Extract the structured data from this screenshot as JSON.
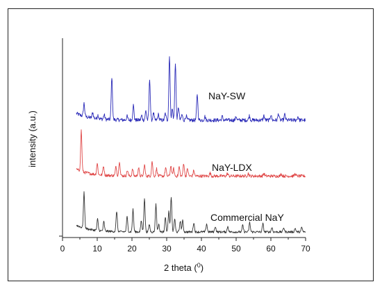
{
  "chart_data": {
    "type": "line",
    "xlabel": "2 theta (",
    "xlabel_degree": "0",
    "xlabel_close": ")",
    "ylabel": "intensity (a.u.)",
    "xlim": [
      0,
      70
    ],
    "xticks": [
      0,
      10,
      20,
      30,
      40,
      50,
      60,
      70
    ],
    "grid": false,
    "series": [
      {
        "name": "NaY-SW",
        "color": "#2b2bb8",
        "baseline": 3.0,
        "noise": 0.05,
        "x_range": [
          4,
          70
        ],
        "peaks": [
          [
            6.2,
            0.35
          ],
          [
            8.7,
            0.15
          ],
          [
            10.2,
            0.1
          ],
          [
            12.0,
            0.12
          ],
          [
            14.2,
            1.15
          ],
          [
            18.6,
            0.1
          ],
          [
            20.4,
            0.4
          ],
          [
            22.8,
            0.12
          ],
          [
            24.0,
            0.25
          ],
          [
            25.1,
            1.1
          ],
          [
            26.2,
            0.18
          ],
          [
            27.6,
            0.15
          ],
          [
            29.6,
            0.18
          ],
          [
            30.8,
            1.75
          ],
          [
            31.6,
            0.3
          ],
          [
            32.5,
            1.55
          ],
          [
            33.4,
            0.35
          ],
          [
            34.4,
            0.15
          ],
          [
            35.6,
            0.12
          ],
          [
            38.8,
            0.7
          ],
          [
            41.0,
            0.1
          ],
          [
            46.0,
            0.1
          ],
          [
            50.0,
            0.1
          ],
          [
            53.8,
            0.12
          ],
          [
            58.0,
            0.12
          ],
          [
            60.0,
            0.15
          ],
          [
            62.2,
            0.18
          ],
          [
            64.0,
            0.15
          ],
          [
            67.8,
            0.1
          ]
        ]
      },
      {
        "name": "NaY-LDX",
        "color": "#e04848",
        "baseline": 1.5,
        "noise": 0.04,
        "x_range": [
          4,
          70
        ],
        "peaks": [
          [
            5.4,
            1.1
          ],
          [
            10.0,
            0.3
          ],
          [
            11.8,
            0.25
          ],
          [
            15.4,
            0.25
          ],
          [
            16.4,
            0.4
          ],
          [
            18.7,
            0.15
          ],
          [
            20.2,
            0.18
          ],
          [
            21.9,
            0.22
          ],
          [
            23.6,
            0.3
          ],
          [
            25.8,
            0.4
          ],
          [
            27.1,
            0.2
          ],
          [
            29.7,
            0.22
          ],
          [
            31.2,
            0.28
          ],
          [
            32.0,
            0.2
          ],
          [
            33.6,
            0.25
          ],
          [
            34.9,
            0.35
          ],
          [
            36.0,
            0.2
          ],
          [
            37.8,
            0.15
          ],
          [
            42.5,
            0.08
          ],
          [
            47.5,
            0.07
          ],
          [
            53.5,
            0.07
          ],
          [
            58.0,
            0.07
          ],
          [
            63.0,
            0.06
          ],
          [
            67.0,
            0.06
          ]
        ]
      },
      {
        "name": "Commercial NaY",
        "color": "#333333",
        "baseline": 0.0,
        "noise": 0.03,
        "x_range": [
          4,
          70
        ],
        "peaks": [
          [
            6.2,
            0.95
          ],
          [
            10.1,
            0.3
          ],
          [
            11.9,
            0.25
          ],
          [
            15.6,
            0.55
          ],
          [
            18.6,
            0.4
          ],
          [
            20.3,
            0.6
          ],
          [
            22.7,
            0.3
          ],
          [
            23.6,
            0.9
          ],
          [
            25.0,
            0.2
          ],
          [
            26.9,
            0.75
          ],
          [
            27.7,
            0.2
          ],
          [
            29.6,
            0.4
          ],
          [
            30.6,
            0.55
          ],
          [
            31.3,
            0.95
          ],
          [
            32.3,
            0.35
          ],
          [
            33.9,
            0.3
          ],
          [
            34.6,
            0.3
          ],
          [
            37.8,
            0.25
          ],
          [
            41.5,
            0.22
          ],
          [
            44.0,
            0.15
          ],
          [
            47.6,
            0.15
          ],
          [
            51.9,
            0.18
          ],
          [
            53.9,
            0.25
          ],
          [
            57.7,
            0.22
          ],
          [
            60.3,
            0.12
          ],
          [
            63.7,
            0.12
          ],
          [
            67.0,
            0.1
          ],
          [
            68.9,
            0.12
          ]
        ]
      }
    ]
  }
}
